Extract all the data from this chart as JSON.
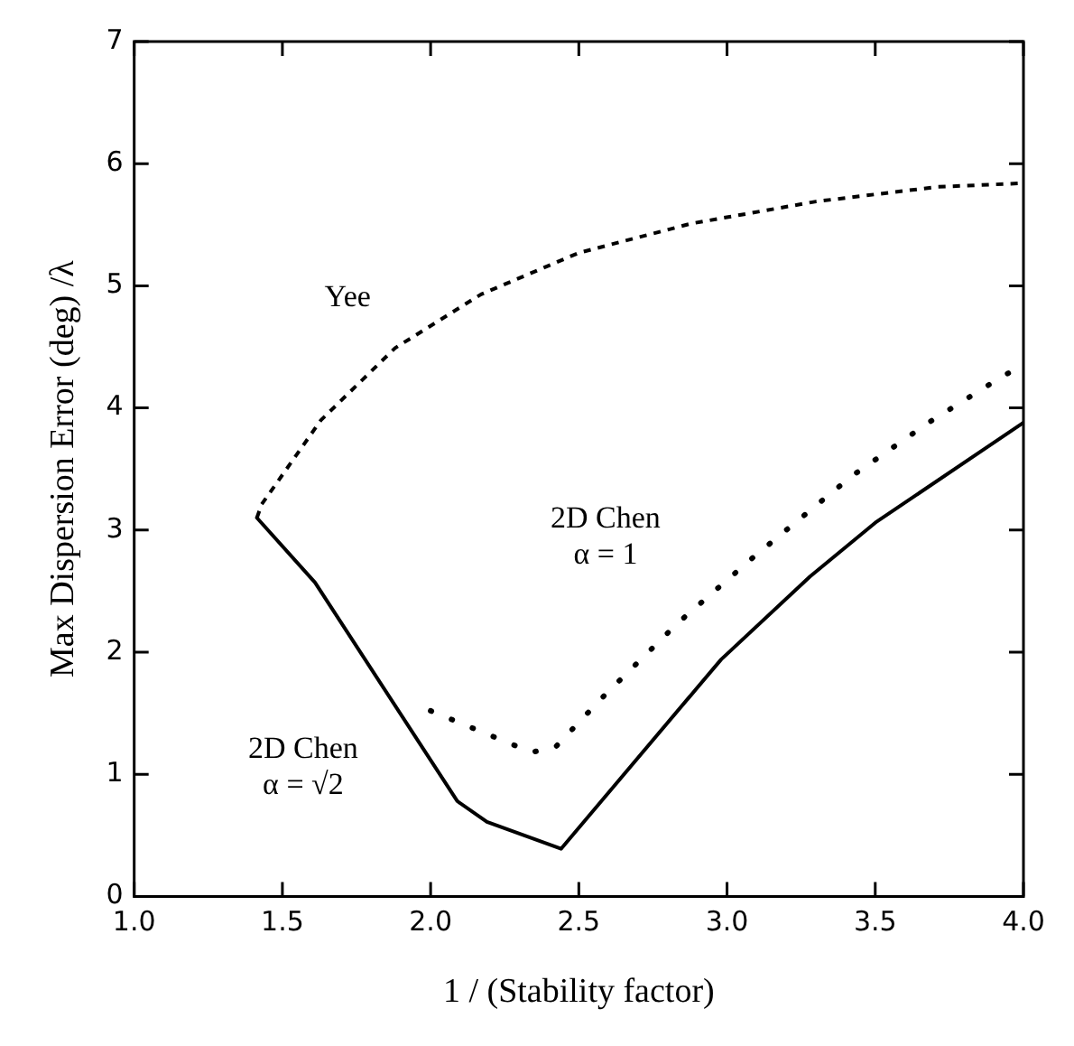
{
  "chart_data": {
    "type": "line",
    "xlabel": "1 / (Stability factor)",
    "ylabel": "Max Dispersion Error (deg) /λ",
    "xlim": [
      1.0,
      4.0
    ],
    "xticks": [
      {
        "value": 1,
        "label": "1.0"
      },
      1.5,
      {
        "value": 2,
        "label": "2.0"
      },
      2.5,
      {
        "value": 3,
        "label": "3.0"
      },
      3.5,
      {
        "value": 4,
        "label": "4.0"
      }
    ],
    "ylim": [
      0,
      7
    ],
    "yticks": [
      0,
      1,
      2,
      3,
      4,
      5,
      6,
      7
    ],
    "grid": false,
    "legend": false,
    "marker": "none",
    "series": [
      {
        "color": "#000000",
        "line_style": "dashed",
        "x": [
          1.414,
          1.43,
          1.63,
          1.88,
          2.17,
          2.5,
          2.88,
          3.3,
          3.71,
          4.0
        ],
        "values": [
          3.1,
          3.21,
          3.9,
          4.49,
          4.93,
          5.27,
          5.51,
          5.69,
          5.81,
          5.84
        ]
      },
      {
        "color": "#000000",
        "line_style": "dotted",
        "x": [
          2.0,
          2.34,
          2.42,
          2.58,
          2.83,
          3.09,
          3.42,
          3.68,
          3.93,
          4.0
        ],
        "values": [
          1.52,
          1.18,
          1.22,
          1.63,
          2.23,
          2.78,
          3.44,
          3.88,
          4.26,
          4.35
        ]
      },
      {
        "color": "#000000",
        "line_style": "solid",
        "x": [
          1.414,
          1.61,
          2.09,
          2.19,
          2.44,
          2.98,
          3.28,
          3.5,
          4.0
        ],
        "values": [
          3.1,
          2.57,
          0.78,
          0.61,
          0.39,
          1.94,
          2.62,
          3.06,
          3.88
        ]
      }
    ],
    "annotations": [
      "Yee",
      "2D Chen\nα = 1",
      "2D Chen\nα = √2"
    ]
  }
}
